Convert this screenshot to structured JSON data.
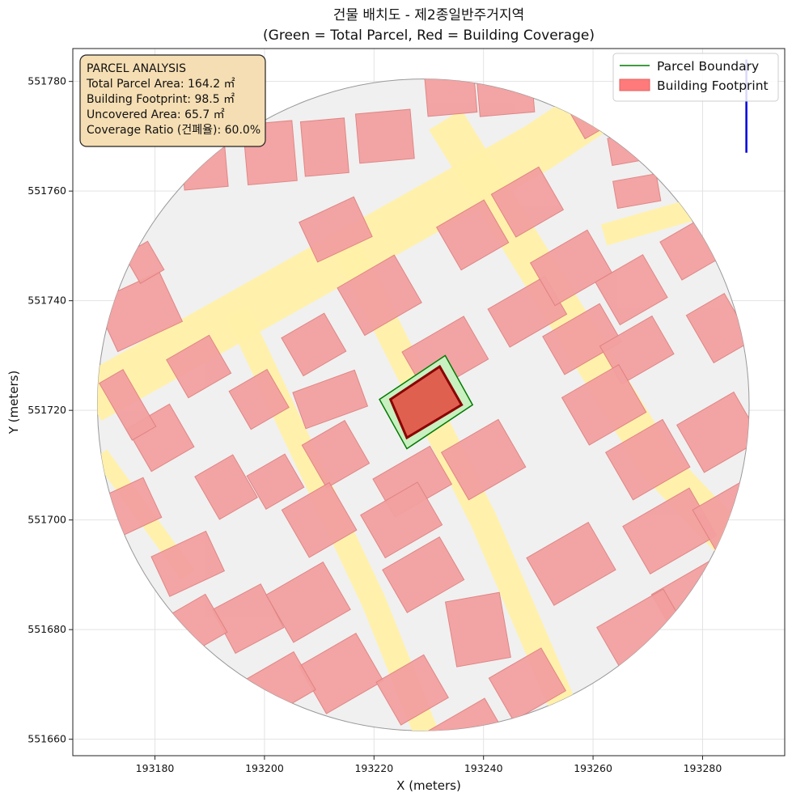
{
  "chart_data": {
    "type": "map",
    "title": "건물 배치도 - 제2종일반주거지역",
    "subtitle": "(Green = Total Parcel, Red = Building Coverage)",
    "xlabel": "X (meters)",
    "ylabel": "Y (meters)",
    "xlim": [
      193165,
      193295
    ],
    "ylim": [
      551657,
      551786
    ],
    "xticks": [
      193180,
      193200,
      193220,
      193240,
      193260,
      193280
    ],
    "yticks": [
      551660,
      551680,
      551700,
      551720,
      551740,
      551760,
      551780
    ],
    "grid": true,
    "legend_position": "top-right",
    "legend": [
      {
        "label": "Parcel Boundary",
        "kind": "line",
        "color": "#007a00"
      },
      {
        "label": "Building Footprint",
        "kind": "patch",
        "color": "#ff7b7b"
      }
    ],
    "annotation": {
      "title": "PARCEL ANALYSIS",
      "lines": [
        "Total Parcel Area: 164.2 ㎡",
        "Building Footprint: 98.5 ㎡",
        "Uncovered Area: 65.7 ㎡",
        "Coverage Ratio (건폐율): 60.0%"
      ]
    },
    "context_area": {
      "center": [
        193229,
        551721
      ],
      "radius": 59.5,
      "color": "#f0f0f0"
    },
    "roads": [
      {
        "width": 9,
        "points": [
          [
            193168,
            551722
          ],
          [
            193250,
            551768
          ],
          [
            193262,
            551776
          ]
        ]
      },
      {
        "width": 7,
        "points": [
          [
            193233,
            551773
          ],
          [
            193272,
            551710
          ],
          [
            193295,
            551686
          ]
        ]
      },
      {
        "width": 5,
        "points": [
          [
            193215,
            551750
          ],
          [
            193240,
            551700
          ],
          [
            193258,
            551658
          ]
        ]
      },
      {
        "width": 4.5,
        "points": [
          [
            193195,
            551738
          ],
          [
            193220,
            551685
          ],
          [
            193232,
            551655
          ]
        ]
      },
      {
        "width": 3,
        "points": [
          [
            193170,
            551712
          ],
          [
            193186,
            551690
          ]
        ]
      },
      {
        "width": 4,
        "points": [
          [
            193262,
            551752
          ],
          [
            193290,
            551760
          ]
        ]
      }
    ],
    "target_parcel": {
      "polygon": [
        [
          193221,
          551722
        ],
        [
          193233,
          551730
        ],
        [
          193238,
          551721
        ],
        [
          193226,
          551713
        ]
      ],
      "edge_color": "#007a00",
      "fill_color": "#c8f0c0"
    },
    "target_building": {
      "polygon": [
        [
          193223,
          551722
        ],
        [
          193232,
          551728
        ],
        [
          193236,
          551721
        ],
        [
          193226,
          551715
        ]
      ],
      "edge_color": "#8b0000",
      "fill_color": "#e06050"
    },
    "buildings": [
      [
        193177,
        551738,
        13,
        10,
        25
      ],
      [
        193188,
        551728,
        9,
        8,
        30
      ],
      [
        193181,
        551715,
        9,
        9,
        30
      ],
      [
        193175,
        551702,
        10,
        8,
        25
      ],
      [
        193186,
        551692,
        11,
        8,
        25
      ],
      [
        193197,
        551682,
        10,
        9,
        28
      ],
      [
        193202,
        551707,
        8,
        7,
        30
      ],
      [
        193193,
        551706,
        8,
        9,
        30
      ],
      [
        193199,
        551722,
        8,
        8,
        30
      ],
      [
        193213,
        551712,
        9,
        9,
        30
      ],
      [
        193209,
        551732,
        9,
        8,
        30
      ],
      [
        193212,
        551722,
        12,
        7,
        20
      ],
      [
        193221,
        551741,
        12,
        10,
        30
      ],
      [
        193213,
        551753,
        11,
        8,
        25
      ],
      [
        193189,
        551765,
        8,
        9,
        5
      ],
      [
        193201,
        551767,
        9,
        11,
        5
      ],
      [
        193211,
        551768,
        8,
        10,
        5
      ],
      [
        193222,
        551770,
        10,
        9,
        5
      ],
      [
        193234,
        551778,
        9,
        8,
        5
      ],
      [
        193244,
        551778,
        10,
        8,
        5
      ],
      [
        193225,
        551783,
        6,
        4,
        10
      ],
      [
        193238,
        551752,
        10,
        9,
        30
      ],
      [
        193248,
        551758,
        10,
        9,
        30
      ],
      [
        193248,
        551738,
        12,
        8,
        30
      ],
      [
        193256,
        551746,
        12,
        9,
        30
      ],
      [
        193258,
        551733,
        12,
        8,
        30
      ],
      [
        193267,
        551742,
        10,
        9,
        30
      ],
      [
        193268,
        551731,
        11,
        8,
        30
      ],
      [
        193279,
        551750,
        11,
        8,
        30
      ],
      [
        193283,
        551735,
        8,
        10,
        30
      ],
      [
        193260,
        551775,
        8,
        8,
        30
      ],
      [
        193268,
        551768,
        10,
        5,
        10
      ],
      [
        193268,
        551760,
        8,
        5,
        10
      ],
      [
        193233,
        551730,
        13,
        9,
        30
      ],
      [
        193227,
        551707,
        12,
        8,
        30
      ],
      [
        193240,
        551711,
        12,
        10,
        30
      ],
      [
        193262,
        551721,
        12,
        10,
        30
      ],
      [
        193270,
        551711,
        12,
        10,
        30
      ],
      [
        193283,
        551716,
        12,
        10,
        30
      ],
      [
        193274,
        551698,
        14,
        10,
        30
      ],
      [
        193285,
        551700,
        10,
        10,
        30
      ],
      [
        193279,
        551686,
        14,
        9,
        30
      ],
      [
        193269,
        551680,
        14,
        9,
        30
      ],
      [
        193256,
        551692,
        13,
        10,
        30
      ],
      [
        193239,
        551680,
        10,
        12,
        10
      ],
      [
        193248,
        551670,
        11,
        9,
        30
      ],
      [
        193229,
        551690,
        12,
        9,
        30
      ],
      [
        193225,
        551700,
        12,
        9,
        30
      ],
      [
        193210,
        551700,
        10,
        10,
        30
      ],
      [
        193208,
        551685,
        12,
        10,
        30
      ],
      [
        193214,
        551672,
        12,
        10,
        30
      ],
      [
        193203,
        551670,
        10,
        8,
        30
      ],
      [
        193227,
        551669,
        10,
        9,
        30
      ],
      [
        193237,
        551661,
        12,
        8,
        30
      ],
      [
        193186,
        551680,
        12,
        8,
        30
      ],
      [
        193175,
        551721,
        5,
        12,
        30
      ],
      [
        193178,
        551747,
        5,
        6,
        30
      ]
    ],
    "north_arrow": {
      "x": 193288,
      "y_top": 551784,
      "y_bottom": 551767,
      "color": "#0000dd"
    }
  }
}
